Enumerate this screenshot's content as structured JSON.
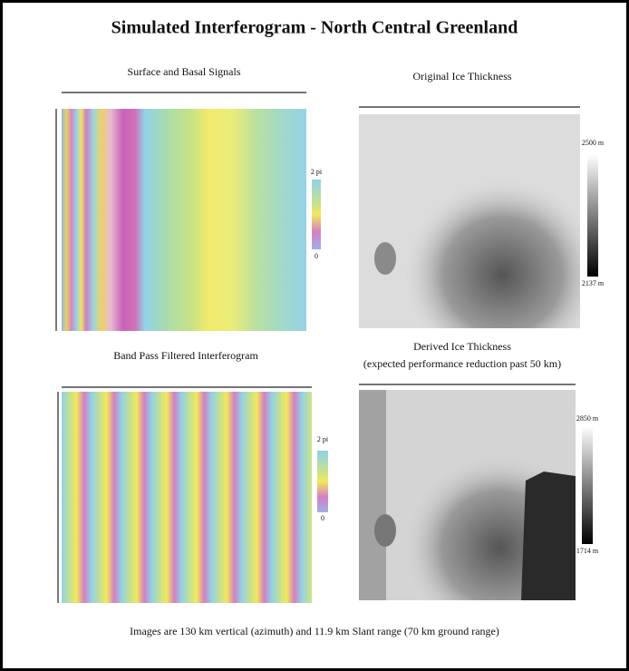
{
  "title": "Simulated Interferogram - North Central Greenland",
  "panels": [
    {
      "title": "Surface and Basal Signals",
      "colorbar": {
        "top": "2 pi",
        "bottom": "0"
      }
    },
    {
      "title": "Original Ice Thickness",
      "colorbar": {
        "top": "2500 m",
        "bottom": "2137 m"
      }
    },
    {
      "title": "Band Pass Filtered Interferogram",
      "colorbar": {
        "top": "2 pi",
        "bottom": "0"
      }
    },
    {
      "title": "Derived Ice Thickness",
      "subtitle": "(expected performance reduction past 50 km)",
      "colorbar": {
        "top": "2850 m",
        "bottom": "1714 m"
      }
    }
  ],
  "caption": "Images are 130 km vertical (azimuth) and 11.9 km Slant range (70 km ground range)"
}
